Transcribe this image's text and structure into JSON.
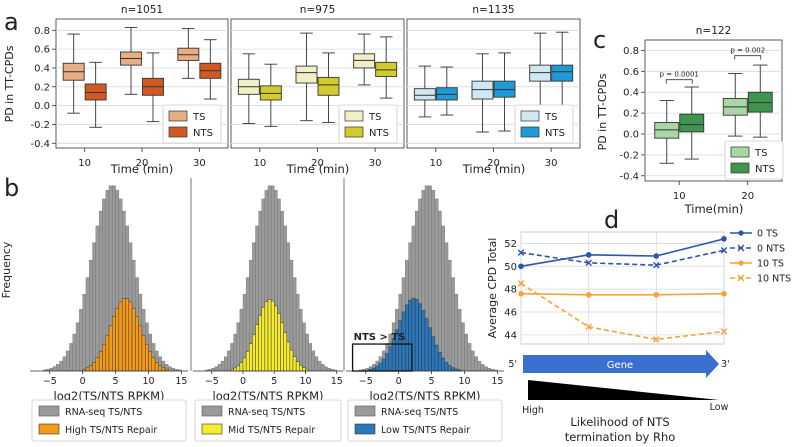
{
  "colors": {
    "grid": "#d9d9d9",
    "axis": "#333333",
    "text": "#222222",
    "grey_hist": "#9a9a9a",
    "a_ts": "#e8ad84",
    "a_nts": "#d05a22",
    "a2_ts": "#f1efc8",
    "a2_nts": "#d2cb2e",
    "a3_ts": "#cfe8f3",
    "a3_nts": "#1f9ad6",
    "c_ts": "#a9d6a4",
    "c_nts": "#3f9550",
    "b_high": "#f39a1a",
    "b_mid": "#f4ec2c",
    "b_low": "#2b77bc",
    "d_blue": "#2c55b0",
    "d_orange": "#f5a33a",
    "gene_arrow": "#3a6fcf"
  },
  "panel_labels": {
    "a": "a",
    "b": "b",
    "c": "c",
    "d": "d"
  },
  "chart_data": [
    {
      "id": "a",
      "type": "boxplot",
      "ylabel": "PD in TT-CPDs",
      "xlabel": "Time (min)",
      "ylim": [
        -0.45,
        0.92
      ],
      "yticks": [
        -0.4,
        -0.2,
        0.0,
        0.2,
        0.4,
        0.6,
        0.8
      ],
      "ytick_labels": [
        "-0.4",
        "-0.2",
        "0.0",
        "0.2",
        "0.4",
        "0.6",
        "0.8"
      ],
      "subplots": [
        {
          "title": "n=1051",
          "categories": [
            "10",
            "20",
            "30"
          ],
          "legend": [
            "TS",
            "NTS"
          ],
          "series": [
            {
              "name": "TS",
              "color_key": "a_ts",
              "boxes": [
                {
                  "min": -0.08,
                  "q1": 0.27,
                  "median": 0.36,
                  "q3": 0.45,
                  "max": 0.76
                },
                {
                  "min": 0.12,
                  "q1": 0.43,
                  "median": 0.5,
                  "q3": 0.57,
                  "max": 0.83
                },
                {
                  "min": 0.29,
                  "q1": 0.48,
                  "median": 0.54,
                  "q3": 0.61,
                  "max": 0.82
                }
              ]
            },
            {
              "name": "NTS",
              "color_key": "a_nts",
              "boxes": [
                {
                  "min": -0.23,
                  "q1": 0.06,
                  "median": 0.14,
                  "q3": 0.23,
                  "max": 0.46
                },
                {
                  "min": -0.17,
                  "q1": 0.11,
                  "median": 0.2,
                  "q3": 0.29,
                  "max": 0.56
                },
                {
                  "min": 0.07,
                  "q1": 0.29,
                  "median": 0.37,
                  "q3": 0.45,
                  "max": 0.7
                }
              ]
            }
          ]
        },
        {
          "title": "n=975",
          "categories": [
            "10",
            "20",
            "30"
          ],
          "legend": [
            "TS",
            "NTS"
          ],
          "series": [
            {
              "name": "TS",
              "color_key": "a2_ts",
              "boxes": [
                {
                  "min": -0.19,
                  "q1": 0.12,
                  "median": 0.2,
                  "q3": 0.28,
                  "max": 0.55
                },
                {
                  "min": -0.16,
                  "q1": 0.24,
                  "median": 0.35,
                  "q3": 0.42,
                  "max": 0.77
                },
                {
                  "min": 0.22,
                  "q1": 0.4,
                  "median": 0.48,
                  "q3": 0.55,
                  "max": 0.76
                }
              ]
            },
            {
              "name": "NTS",
              "color_key": "a2_nts",
              "boxes": [
                {
                  "min": -0.22,
                  "q1": 0.06,
                  "median": 0.13,
                  "q3": 0.21,
                  "max": 0.44
                },
                {
                  "min": -0.18,
                  "q1": 0.11,
                  "median": 0.22,
                  "q3": 0.3,
                  "max": 0.56
                },
                {
                  "min": 0.08,
                  "q1": 0.31,
                  "median": 0.38,
                  "q3": 0.46,
                  "max": 0.73
                }
              ]
            }
          ]
        },
        {
          "title": "n=1135",
          "categories": [
            "10",
            "20",
            "30"
          ],
          "legend": [
            "TS",
            "NTS"
          ],
          "series": [
            {
              "name": "TS",
              "color_key": "a3_ts",
              "boxes": [
                {
                  "min": -0.12,
                  "q1": 0.06,
                  "median": 0.11,
                  "q3": 0.18,
                  "max": 0.42
                },
                {
                  "min": -0.28,
                  "q1": 0.07,
                  "median": 0.17,
                  "q3": 0.26,
                  "max": 0.55
                },
                {
                  "min": -0.15,
                  "q1": 0.26,
                  "median": 0.35,
                  "q3": 0.43,
                  "max": 0.77
                }
              ]
            },
            {
              "name": "NTS",
              "color_key": "a3_nts",
              "boxes": [
                {
                  "min": -0.1,
                  "q1": 0.06,
                  "median": 0.12,
                  "q3": 0.19,
                  "max": 0.41
                },
                {
                  "min": -0.27,
                  "q1": 0.09,
                  "median": 0.17,
                  "q3": 0.26,
                  "max": 0.56
                },
                {
                  "min": -0.17,
                  "q1": 0.26,
                  "median": 0.36,
                  "q3": 0.43,
                  "max": 0.78
                }
              ]
            }
          ]
        }
      ]
    },
    {
      "id": "b",
      "type": "histogram",
      "ylabel": "Frequency",
      "xlabel": "log2(TS/NTS RPKM)",
      "xlim": [
        -8,
        16
      ],
      "bin_width": 0.5,
      "xticks": [
        -5,
        0,
        5,
        10,
        15
      ],
      "xtick_labels": [
        "−5",
        "0",
        "5",
        "10",
        "15"
      ],
      "ylim": [
        0,
        265
      ],
      "annotation": "NTS > TS",
      "subplots": [
        {
          "background": {
            "label": "RNA-seq TS/NTS",
            "mean": 4.5,
            "sd": 3.2,
            "peak": 255
          },
          "foreground": {
            "label": "High TS/NTS Repair",
            "mean": 6.5,
            "sd": 2.3,
            "peak": 100,
            "color_key": "b_high"
          }
        },
        {
          "background": {
            "label": "RNA-seq TS/NTS",
            "mean": 4.5,
            "sd": 3.2,
            "peak": 255
          },
          "foreground": {
            "label": "Mid TS/NTS Repair",
            "mean": 4.3,
            "sd": 2.2,
            "peak": 98,
            "color_key": "b_mid"
          }
        },
        {
          "background": {
            "label": "RNA-seq TS/NTS",
            "mean": 4.5,
            "sd": 3.2,
            "peak": 255
          },
          "foreground": {
            "label": "Low TS/NTS Repair",
            "mean": 2.3,
            "sd": 2.4,
            "peak": 100,
            "color_key": "b_low"
          }
        }
      ]
    },
    {
      "id": "c",
      "type": "boxplot",
      "title": "n=122",
      "ylabel": "PD in TT-CPDs",
      "xlabel": "Time(min)",
      "ylim": [
        -0.45,
        0.9
      ],
      "yticks": [
        -0.4,
        -0.2,
        0.0,
        0.2,
        0.4,
        0.6,
        0.8
      ],
      "ytick_labels": [
        "-0.4",
        "-0.2",
        "0.0",
        "0.2",
        "0.4",
        "0.6",
        "0.8"
      ],
      "categories": [
        "10",
        "20"
      ],
      "legend": [
        "TS",
        "NTS"
      ],
      "annotations": [
        "p = 0.0001",
        "p = 0.002"
      ],
      "series": [
        {
          "name": "TS",
          "color_key": "c_ts",
          "boxes": [
            {
              "min": -0.28,
              "q1": -0.04,
              "median": 0.04,
              "q3": 0.11,
              "max": 0.32
            },
            {
              "min": -0.02,
              "q1": 0.18,
              "median": 0.26,
              "q3": 0.34,
              "max": 0.58
            }
          ]
        },
        {
          "name": "NTS",
          "color_key": "c_nts",
          "boxes": [
            {
              "min": -0.24,
              "q1": 0.02,
              "median": 0.09,
              "q3": 0.19,
              "max": 0.45
            },
            {
              "min": -0.03,
              "q1": 0.21,
              "median": 0.3,
              "q3": 0.4,
              "max": 0.66
            }
          ]
        }
      ]
    },
    {
      "id": "d",
      "type": "line",
      "ylabel": "Average CPD Total",
      "ylim": [
        43.2,
        53.0
      ],
      "yticks": [
        44,
        46,
        48,
        50,
        52
      ],
      "ytick_labels": [
        "44",
        "46",
        "48",
        "50",
        "52"
      ],
      "x": [
        0,
        1,
        2,
        3
      ],
      "series": [
        {
          "name": "0 TS",
          "values": [
            50.0,
            51.0,
            50.9,
            52.4
          ],
          "color_key": "d_blue",
          "dashed": false,
          "marker": "circle"
        },
        {
          "name": "0 NTS",
          "values": [
            51.2,
            50.3,
            50.1,
            51.4
          ],
          "color_key": "d_blue",
          "dashed": true,
          "marker": "x"
        },
        {
          "name": "10 TS",
          "values": [
            47.6,
            47.5,
            47.5,
            47.6
          ],
          "color_key": "d_orange",
          "dashed": false,
          "marker": "circle"
        },
        {
          "name": "10 NTS",
          "values": [
            48.5,
            44.7,
            43.6,
            44.3
          ],
          "color_key": "d_orange",
          "dashed": true,
          "marker": "x"
        }
      ],
      "gene_label": "Gene",
      "five_prime": "5'",
      "three_prime": "3'",
      "high_label": "High",
      "low_label": "Low",
      "caption_line1": "Likelihood of NTS",
      "caption_line2": "termination by Rho"
    }
  ]
}
